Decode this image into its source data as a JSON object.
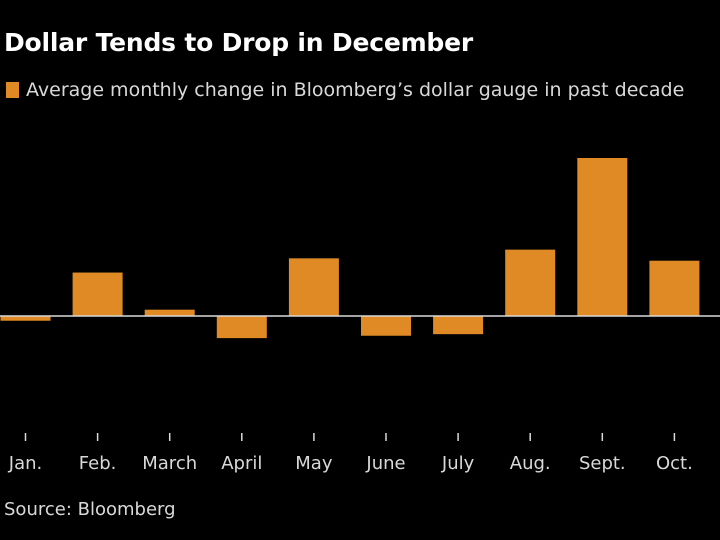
{
  "colors": {
    "bar": "#e08a26",
    "axis": "#d9d9d9",
    "background": "#000000"
  },
  "chart_data": {
    "type": "bar",
    "title": "Dollar Tends to Drop in December",
    "legend": [
      "Average monthly change in Bloomberg’s dollar gauge in past decade"
    ],
    "categories": [
      "Jan.",
      "Feb.",
      "March",
      "April",
      "May",
      "June",
      "July",
      "Aug.",
      "Sept.",
      "Oct."
    ],
    "values": [
      -0.06,
      0.55,
      0.08,
      -0.28,
      0.73,
      -0.25,
      -0.23,
      0.84,
      2.0,
      0.7
    ],
    "ylim": [
      -1.5,
      2.0
    ],
    "xlabel": "",
    "ylabel": "",
    "grid": false,
    "source": "Source: Bloomberg"
  }
}
